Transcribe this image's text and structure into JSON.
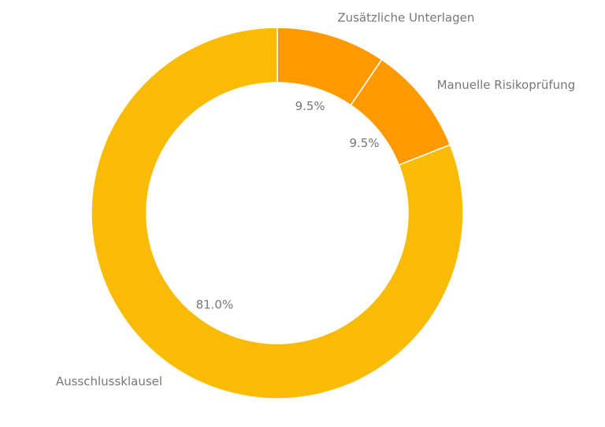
{
  "chart_data": {
    "type": "pie",
    "donut": true,
    "categories": [
      "Zusätzliche Unterlagen",
      "Manuelle Risikoprüfung",
      "Ausschlussklausel"
    ],
    "values": [
      9.5,
      9.5,
      81.0
    ],
    "value_labels": [
      "9.5%",
      "9.5%",
      "81.0%"
    ],
    "colors": [
      "#ff9900",
      "#ff9900",
      "#fabb05"
    ]
  }
}
